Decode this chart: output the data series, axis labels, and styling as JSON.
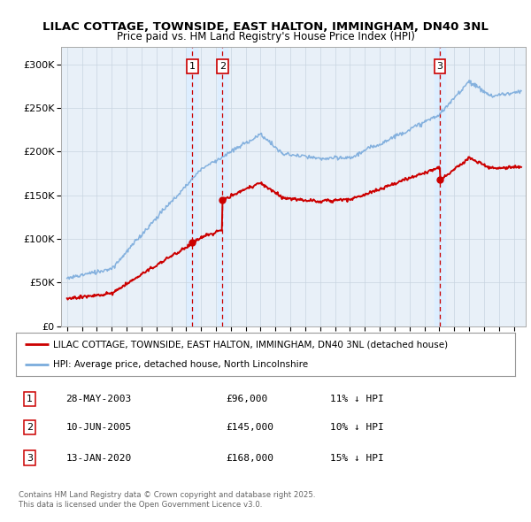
{
  "title_line1": "LILAC COTTAGE, TOWNSIDE, EAST HALTON, IMMINGHAM, DN40 3NL",
  "title_line2": "Price paid vs. HM Land Registry's House Price Index (HPI)",
  "legend_label_red": "LILAC COTTAGE, TOWNSIDE, EAST HALTON, IMMINGHAM, DN40 3NL (detached house)",
  "legend_label_blue": "HPI: Average price, detached house, North Lincolnshire",
  "footer_line1": "Contains HM Land Registry data © Crown copyright and database right 2025.",
  "footer_line2": "This data is licensed under the Open Government Licence v3.0.",
  "transactions": [
    {
      "num": 1,
      "date": "28-MAY-2003",
      "price": 96000,
      "pct": "11%",
      "year": 2003.41
    },
    {
      "num": 2,
      "date": "10-JUN-2005",
      "price": 145000,
      "pct": "10%",
      "year": 2005.44
    },
    {
      "num": 3,
      "date": "13-JAN-2020",
      "price": 168000,
      "pct": "15%",
      "year": 2020.04
    }
  ],
  "red_color": "#cc0000",
  "blue_color": "#7aabdc",
  "dashed_color": "#cc0000",
  "shaded_color": "#ddeeff",
  "plot_bg": "#e8f0f8",
  "grid_color": "#c8d4e0",
  "ylim": [
    0,
    320000
  ],
  "xlim": [
    1994.6,
    2025.8
  ],
  "yticks": [
    0,
    50000,
    100000,
    150000,
    200000,
    250000,
    300000
  ],
  "xticks": [
    1995,
    1996,
    1997,
    1998,
    1999,
    2000,
    2001,
    2002,
    2003,
    2004,
    2005,
    2006,
    2007,
    2008,
    2009,
    2010,
    2011,
    2012,
    2013,
    2014,
    2015,
    2016,
    2017,
    2018,
    2019,
    2020,
    2021,
    2022,
    2023,
    2024,
    2025
  ]
}
